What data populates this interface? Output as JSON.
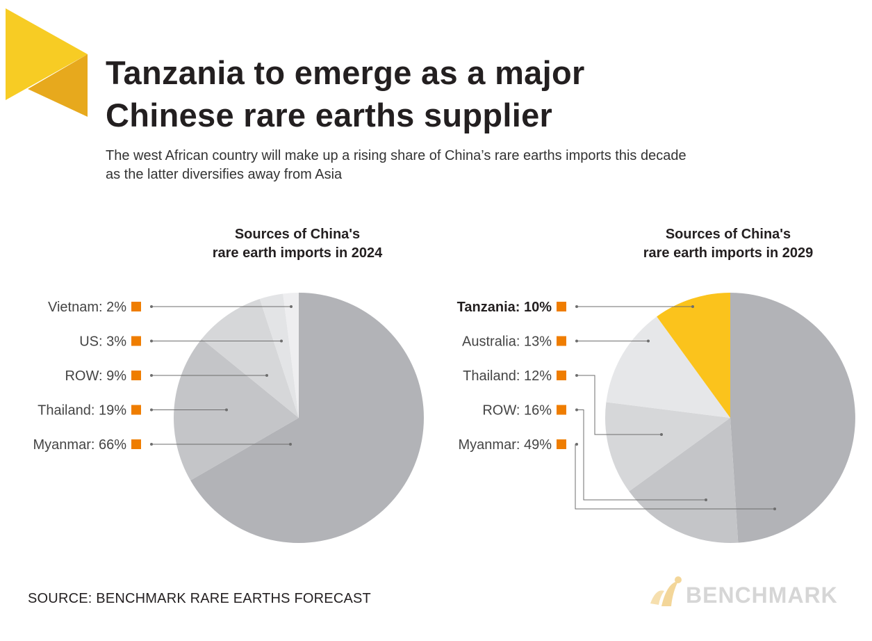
{
  "header": {
    "title_line1": "Tanzania to emerge as a major",
    "title_line2": "Chinese rare earths supplier",
    "subtitle_line1": "The west African country will make up a rising share of China’s rare earths imports this decade",
    "subtitle_line2": "as the latter diversifies away from Asia"
  },
  "footer": {
    "source": "SOURCE: BENCHMARK RARE EARTHS FORECAST",
    "brand": "BENCHMARK"
  },
  "colors": {
    "accent_yellow": "#f7cc24",
    "accent_gold": "#e7a91d",
    "marker_orange": "#ef7d00",
    "highlight_slice": "#fbc31c",
    "leader_line": "#6d6d6d"
  },
  "chart_data": [
    {
      "type": "pie",
      "title_line1": "Sources of China's",
      "title_line2": "rare earth imports in 2024",
      "slices": [
        {
          "label": "Myanmar",
          "value": 66,
          "display": "Myanmar: 66%",
          "color": "#b2b3b7"
        },
        {
          "label": "Thailand",
          "value": 19,
          "display": "Thailand: 19%",
          "color": "#c4c5c8"
        },
        {
          "label": "ROW",
          "value": 9,
          "display": "ROW: 9%",
          "color": "#d6d7d9"
        },
        {
          "label": "US",
          "value": 3,
          "display": "US: 3%",
          "color": "#e3e4e6"
        },
        {
          "label": "Vietnam",
          "value": 2,
          "display": "Vietnam: 2%",
          "color": "#eeeef0"
        }
      ]
    },
    {
      "type": "pie",
      "title_line1": "Sources of China's",
      "title_line2": "rare earth imports in 2029",
      "slices": [
        {
          "label": "Myanmar",
          "value": 49,
          "display": "Myanmar: 49%",
          "color": "#b2b3b7"
        },
        {
          "label": "ROW",
          "value": 16,
          "display": "ROW: 16%",
          "color": "#c4c5c8"
        },
        {
          "label": "Thailand",
          "value": 12,
          "display": "Thailand: 12%",
          "color": "#d6d7d9"
        },
        {
          "label": "Australia",
          "value": 13,
          "display": "Australia: 13%",
          "color": "#e6e7e9"
        },
        {
          "label": "Tanzania",
          "value": 10,
          "display": "Tanzania: 10%",
          "color": "#fbc31c",
          "bold": true
        }
      ]
    }
  ]
}
